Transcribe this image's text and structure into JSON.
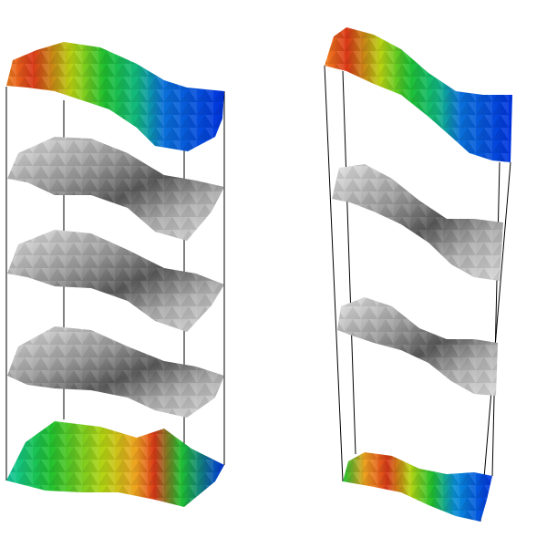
{
  "figure": {
    "panels": [
      {
        "id": "left-stack",
        "layers": [
          {
            "kind": "color",
            "scheme": "height"
          },
          {
            "kind": "gray"
          },
          {
            "kind": "gray"
          },
          {
            "kind": "gray"
          },
          {
            "kind": "color",
            "scheme": "height"
          }
        ]
      },
      {
        "id": "right-stack",
        "layers": [
          {
            "kind": "color",
            "scheme": "height"
          },
          {
            "kind": "gray"
          },
          {
            "kind": "gray"
          },
          {
            "kind": "color",
            "scheme": "height"
          }
        ]
      }
    ],
    "colors": {
      "background": "#ffffff",
      "frame": "#000000",
      "gray_light": "#e2e2e2",
      "gray_dark": "#5a5a5a",
      "colormap": [
        "#0033dd",
        "#0a8fd8",
        "#11c8a0",
        "#20c030",
        "#b8d414",
        "#f0a020",
        "#d83818"
      ]
    }
  }
}
